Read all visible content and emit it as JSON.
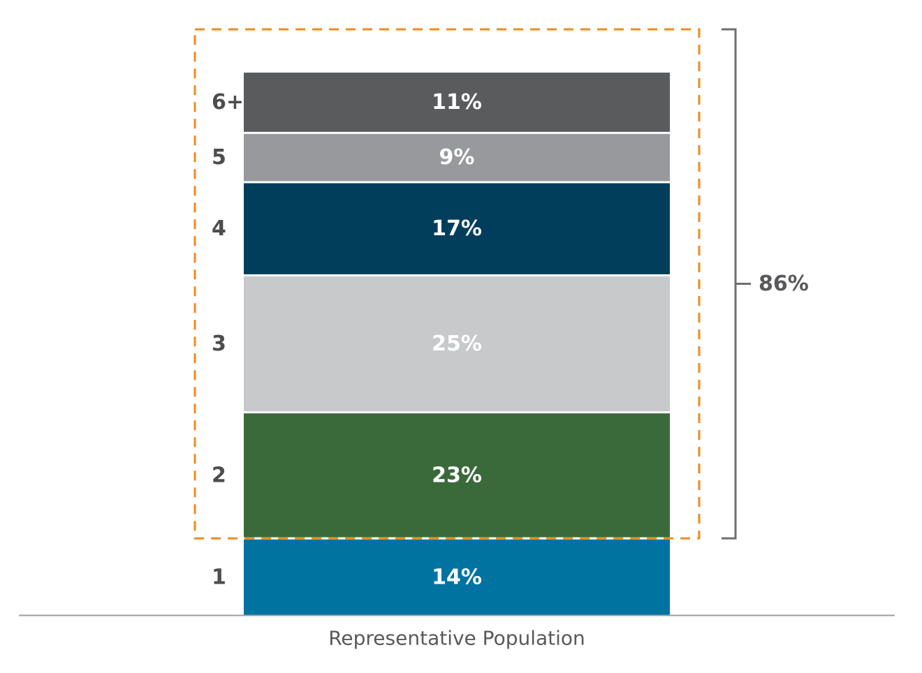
{
  "chart_data": {
    "type": "bar",
    "stacked": true,
    "xlabel": "Representative Population",
    "ylabel": "",
    "ylim": [
      0,
      100
    ],
    "categories": [
      "1",
      "2",
      "3",
      "4",
      "5",
      "6+"
    ],
    "values": [
      14,
      23,
      25,
      17,
      9,
      11
    ],
    "value_labels": [
      "14%",
      "23%",
      "25%",
      "17%",
      "9%",
      "11%"
    ],
    "colors": [
      "#0073a1",
      "#3b6a3a",
      "#c8c9cb",
      "#003e5c",
      "#98999c",
      "#5a5b5d"
    ],
    "highlight": {
      "categories": [
        "2",
        "3",
        "4",
        "5",
        "6+"
      ],
      "total": 86,
      "label": "86%",
      "box_color": "#f18a1c",
      "bracket_color": "#6d6e71"
    }
  }
}
